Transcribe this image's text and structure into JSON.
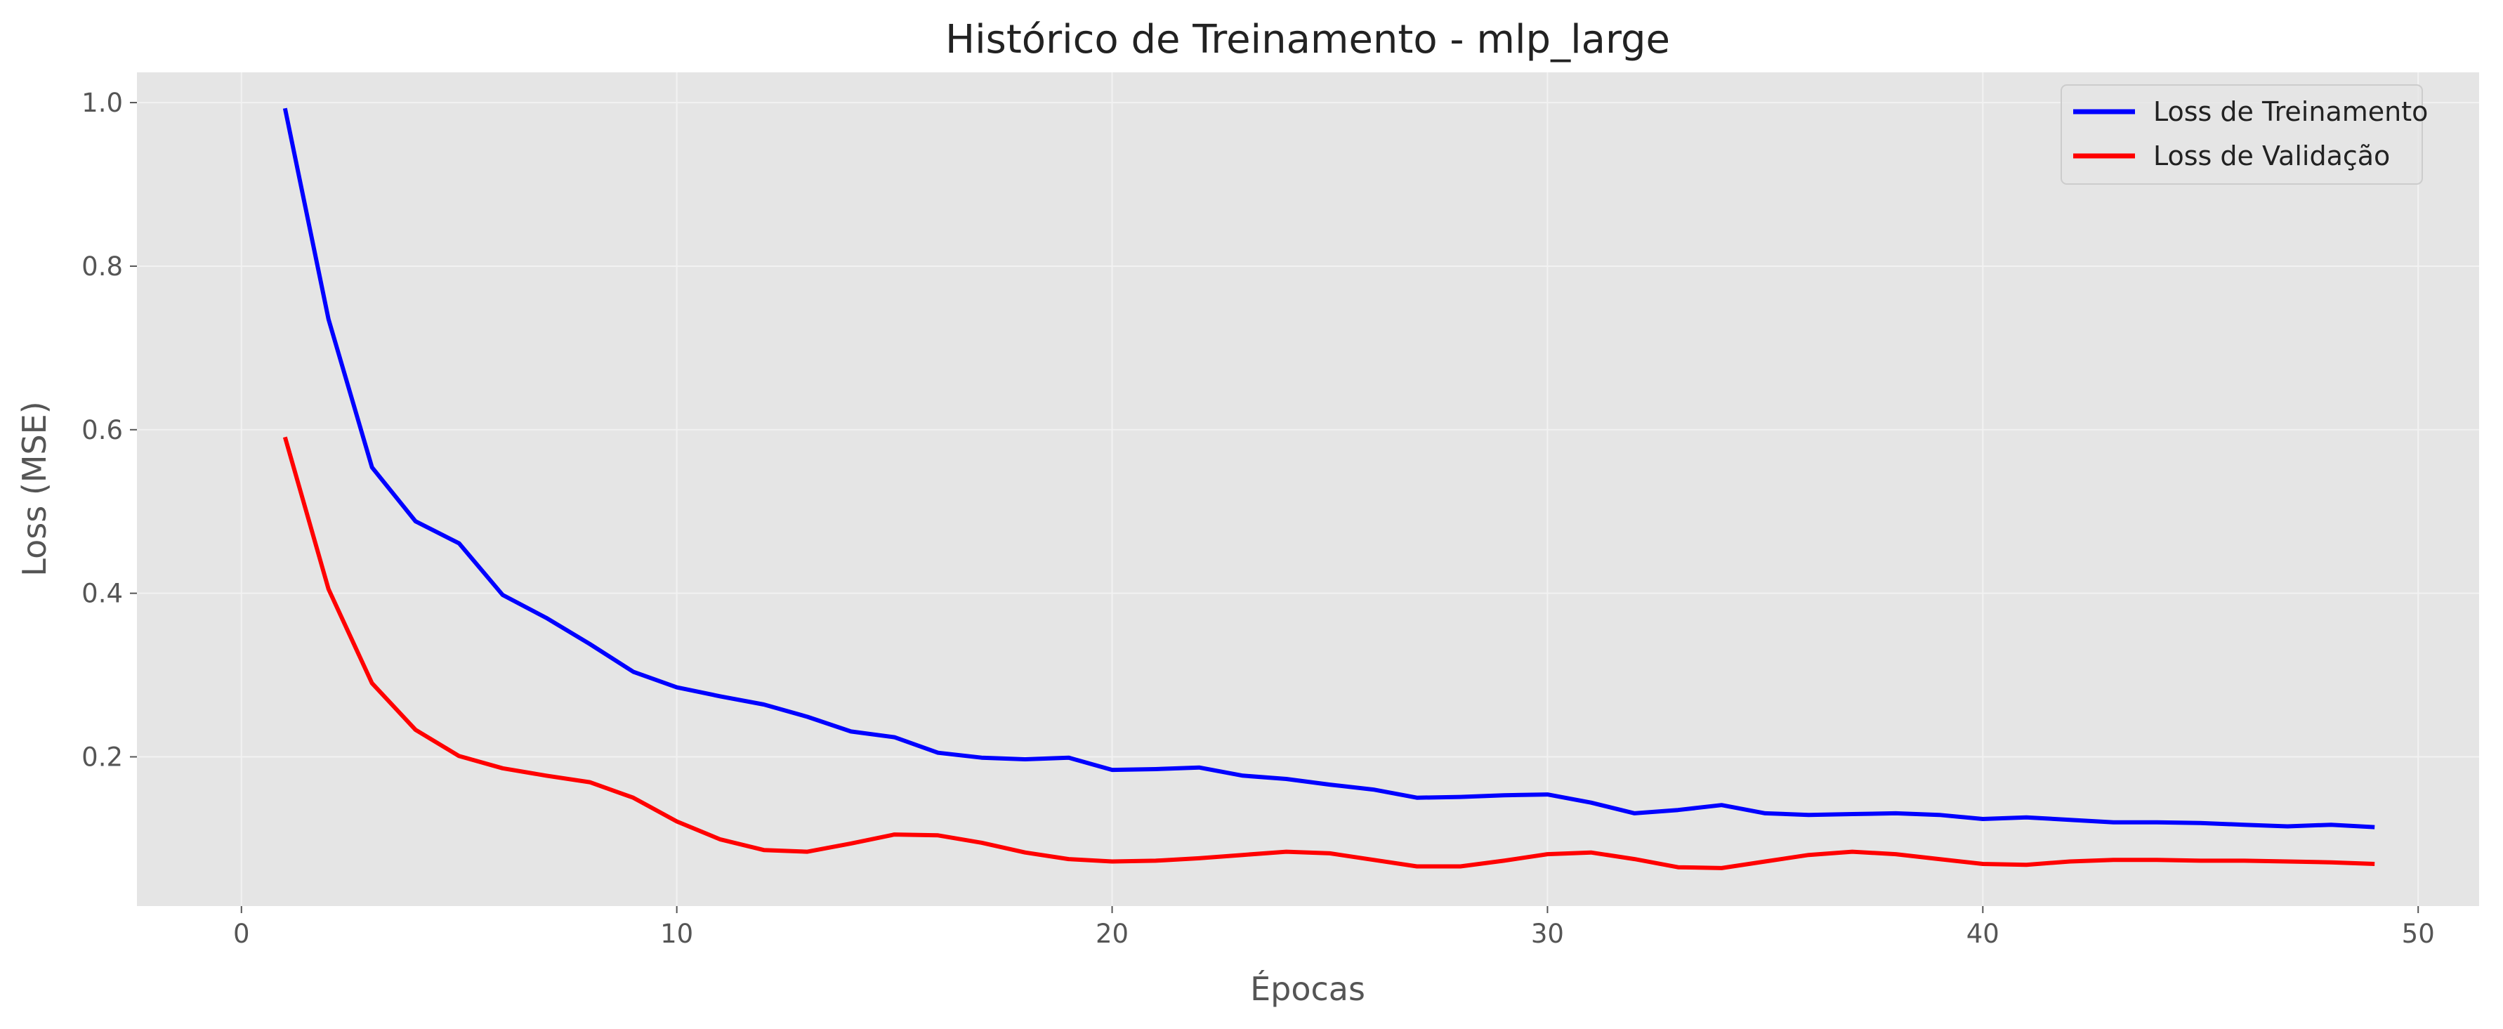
{
  "chart_data": {
    "type": "line",
    "title": "Histórico de Treinamento - mlp_large",
    "xlabel": "Épocas",
    "ylabel": "Loss (MSE)",
    "xlim": [
      -2.4,
      51.4
    ],
    "ylim": [
      0.0175,
      1.037
    ],
    "xticks": [
      0,
      10,
      20,
      30,
      40,
      50
    ],
    "yticks": [
      0.2,
      0.4,
      0.6,
      0.8,
      1.0
    ],
    "xtick_labels": [
      "0",
      "10",
      "20",
      "30",
      "40",
      "50"
    ],
    "ytick_labels": [
      "0.2",
      "0.4",
      "0.6",
      "0.8",
      "1.0"
    ],
    "grid": true,
    "legend_position": "top-right",
    "x": [
      1,
      2,
      3,
      4,
      5,
      6,
      7,
      8,
      9,
      10,
      11,
      12,
      13,
      14,
      15,
      16,
      17,
      18,
      19,
      20,
      21,
      22,
      23,
      24,
      25,
      26,
      27,
      28,
      29,
      30,
      31,
      32,
      33,
      34,
      35,
      36,
      37,
      38,
      39,
      40,
      41,
      42,
      43,
      44,
      45,
      46,
      47,
      48,
      49
    ],
    "series": [
      {
        "name": "Loss de Treinamento",
        "color": "#0000ff",
        "values": [
          0.993,
          0.735,
          0.554,
          0.488,
          0.461,
          0.398,
          0.37,
          0.338,
          0.304,
          0.285,
          0.274,
          0.264,
          0.249,
          0.231,
          0.224,
          0.205,
          0.199,
          0.197,
          0.199,
          0.184,
          0.185,
          0.187,
          0.177,
          0.173,
          0.166,
          0.16,
          0.15,
          0.151,
          0.153,
          0.154,
          0.144,
          0.131,
          0.135,
          0.141,
          0.131,
          0.129,
          0.13,
          0.131,
          0.129,
          0.124,
          0.126,
          0.123,
          0.12,
          0.12,
          0.119,
          0.117,
          0.115,
          0.117,
          0.114
        ]
      },
      {
        "name": "Loss de Validação",
        "color": "#ff0000",
        "values": [
          0.591,
          0.405,
          0.29,
          0.233,
          0.201,
          0.186,
          0.177,
          0.169,
          0.15,
          0.121,
          0.099,
          0.086,
          0.084,
          0.094,
          0.105,
          0.104,
          0.095,
          0.083,
          0.075,
          0.072,
          0.073,
          0.076,
          0.08,
          0.084,
          0.082,
          0.074,
          0.066,
          0.066,
          0.073,
          0.081,
          0.083,
          0.075,
          0.065,
          0.064,
          0.072,
          0.08,
          0.084,
          0.081,
          0.075,
          0.069,
          0.068,
          0.072,
          0.074,
          0.074,
          0.073,
          0.073,
          0.072,
          0.071,
          0.069
        ]
      }
    ]
  }
}
